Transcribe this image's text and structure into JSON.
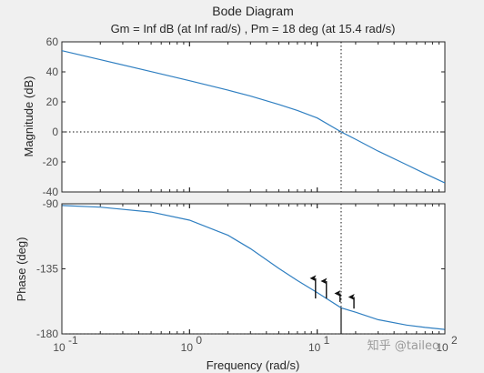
{
  "watermark": "知乎 @taileo",
  "chart_data": [
    {
      "type": "line",
      "panel": "magnitude",
      "title": "Bode Diagram",
      "subtitle": "Gm = Inf dB (at Inf rad/s) ,  Pm = 18 deg (at 15.4 rad/s)",
      "ylabel": "Magnitude (dB)",
      "xscale": "log",
      "xlim": [
        0.1,
        100
      ],
      "ylim": [
        -40,
        60
      ],
      "yticks": [
        -40,
        -20,
        0,
        20,
        40,
        60
      ],
      "ytick_labels": [
        "-40",
        "-20",
        "0",
        "20",
        "40",
        "60"
      ],
      "line_color": "#2f7fc1",
      "series": [
        {
          "x": [
            0.1,
            0.2,
            0.5,
            1,
            2,
            3,
            5,
            7,
            10,
            15.4,
            20,
            30,
            50,
            70,
            100
          ],
          "y": [
            54.1,
            48.1,
            40.2,
            34.1,
            27.8,
            23.9,
            18.3,
            14.3,
            9.3,
            0,
            -4.9,
            -12.8,
            -21.8,
            -27.8,
            -34
          ]
        }
      ],
      "reference_lines": [
        {
          "orientation": "horizontal",
          "value": 0,
          "style": "dotted"
        },
        {
          "orientation": "vertical",
          "value": 15.4,
          "style": "dotted"
        }
      ]
    },
    {
      "type": "line",
      "panel": "phase",
      "ylabel": "Phase (deg)",
      "xlabel": "Frequency  (rad/s)",
      "xscale": "log",
      "xlim": [
        0.1,
        100
      ],
      "ylim": [
        -180,
        -90
      ],
      "yticks": [
        -180,
        -135,
        -90
      ],
      "ytick_labels": [
        "-180",
        "-135",
        "-90"
      ],
      "xticks": [
        0.1,
        1,
        10,
        100
      ],
      "xtick_labels": [
        {
          "base": "10",
          "exp": "-1"
        },
        {
          "base": "10",
          "exp": "0"
        },
        {
          "base": "10",
          "exp": "1"
        },
        {
          "base": "10",
          "exp": "2"
        }
      ],
      "line_color": "#2f7fc1",
      "series": [
        {
          "x": [
            0.1,
            0.2,
            0.5,
            1,
            2,
            3,
            5,
            7,
            10,
            15.4,
            20,
            30,
            50,
            70,
            100
          ],
          "y": [
            -91.2,
            -92.3,
            -95.7,
            -101.3,
            -111.8,
            -121,
            -134.7,
            -143.1,
            -151.4,
            -162,
            -165,
            -170.2,
            -173.9,
            -175.5,
            -176.9
          ]
        }
      ],
      "reference_lines": [
        {
          "orientation": "horizontal",
          "value": -180,
          "style": "dotted"
        },
        {
          "orientation": "vertical",
          "value": 15.4,
          "style": "dotted"
        }
      ],
      "annotations": [
        {
          "type": "phase-margin-line",
          "x": 15.4,
          "from": -180,
          "to": -162
        },
        {
          "type": "arrow",
          "x": 9.7,
          "from": -155.5,
          "to": -141.5
        },
        {
          "type": "arrow",
          "x": 11.8,
          "from": -155.5,
          "to": -143.5
        },
        {
          "type": "arrow",
          "x": 15.1,
          "from": -158,
          "to": -152
        },
        {
          "type": "arrow",
          "x": 19.4,
          "from": -162.5,
          "to": -154.5
        }
      ]
    }
  ]
}
